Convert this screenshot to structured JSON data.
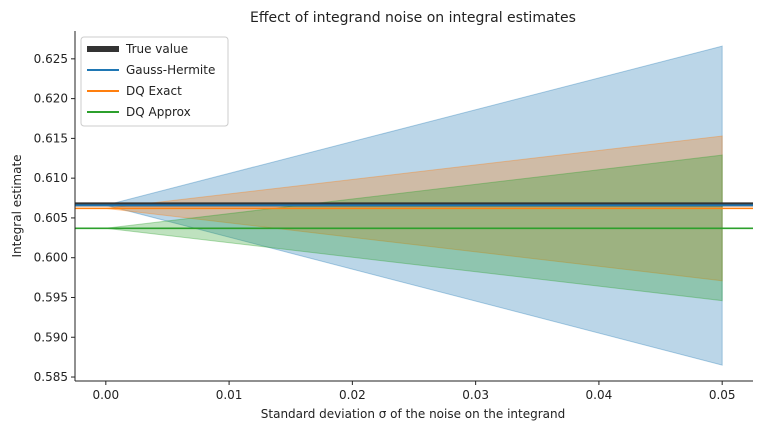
{
  "chart_data": {
    "type": "line",
    "title": "Effect of integrand noise on integral estimates",
    "xlabel": "Standard deviation σ of the noise on the integrand",
    "ylabel": "Integral estimate",
    "xlim": [
      -0.0025,
      0.0525
    ],
    "ylim": [
      0.5845,
      0.6285
    ],
    "xticks": [
      0.0,
      0.01,
      0.02,
      0.03,
      0.04,
      0.05
    ],
    "xtick_labels": [
      "0.00",
      "0.01",
      "0.02",
      "0.03",
      "0.04",
      "0.05"
    ],
    "yticks": [
      0.585,
      0.59,
      0.595,
      0.6,
      0.605,
      0.61,
      0.615,
      0.62,
      0.625
    ],
    "ytick_labels": [
      "0.585",
      "0.590",
      "0.595",
      "0.600",
      "0.605",
      "0.610",
      "0.615",
      "0.620",
      "0.625"
    ],
    "grid": false,
    "legend_position": "top-left",
    "true_value": {
      "name": "True value",
      "value": 0.6067,
      "color": "#333333"
    },
    "series": [
      {
        "name": "Gauss-Hermite",
        "color": "#1f77b4",
        "x": [
          0.0,
          0.05
        ],
        "mean": [
          0.6066,
          0.6066
        ],
        "band_lower": [
          0.6066,
          0.5865
        ],
        "band_upper": [
          0.6066,
          0.6266
        ]
      },
      {
        "name": "DQ Exact",
        "color": "#ff7f0e",
        "x": [
          0.0,
          0.05
        ],
        "mean": [
          0.6062,
          0.6062
        ],
        "band_lower": [
          0.6062,
          0.5971
        ],
        "band_upper": [
          0.6062,
          0.6153
        ]
      },
      {
        "name": "DQ Approx",
        "color": "#2ca02c",
        "x": [
          0.0,
          0.05
        ],
        "mean": [
          0.6037,
          0.6037
        ],
        "band_lower": [
          0.6037,
          0.5946
        ],
        "band_upper": [
          0.6037,
          0.6129
        ]
      }
    ]
  }
}
